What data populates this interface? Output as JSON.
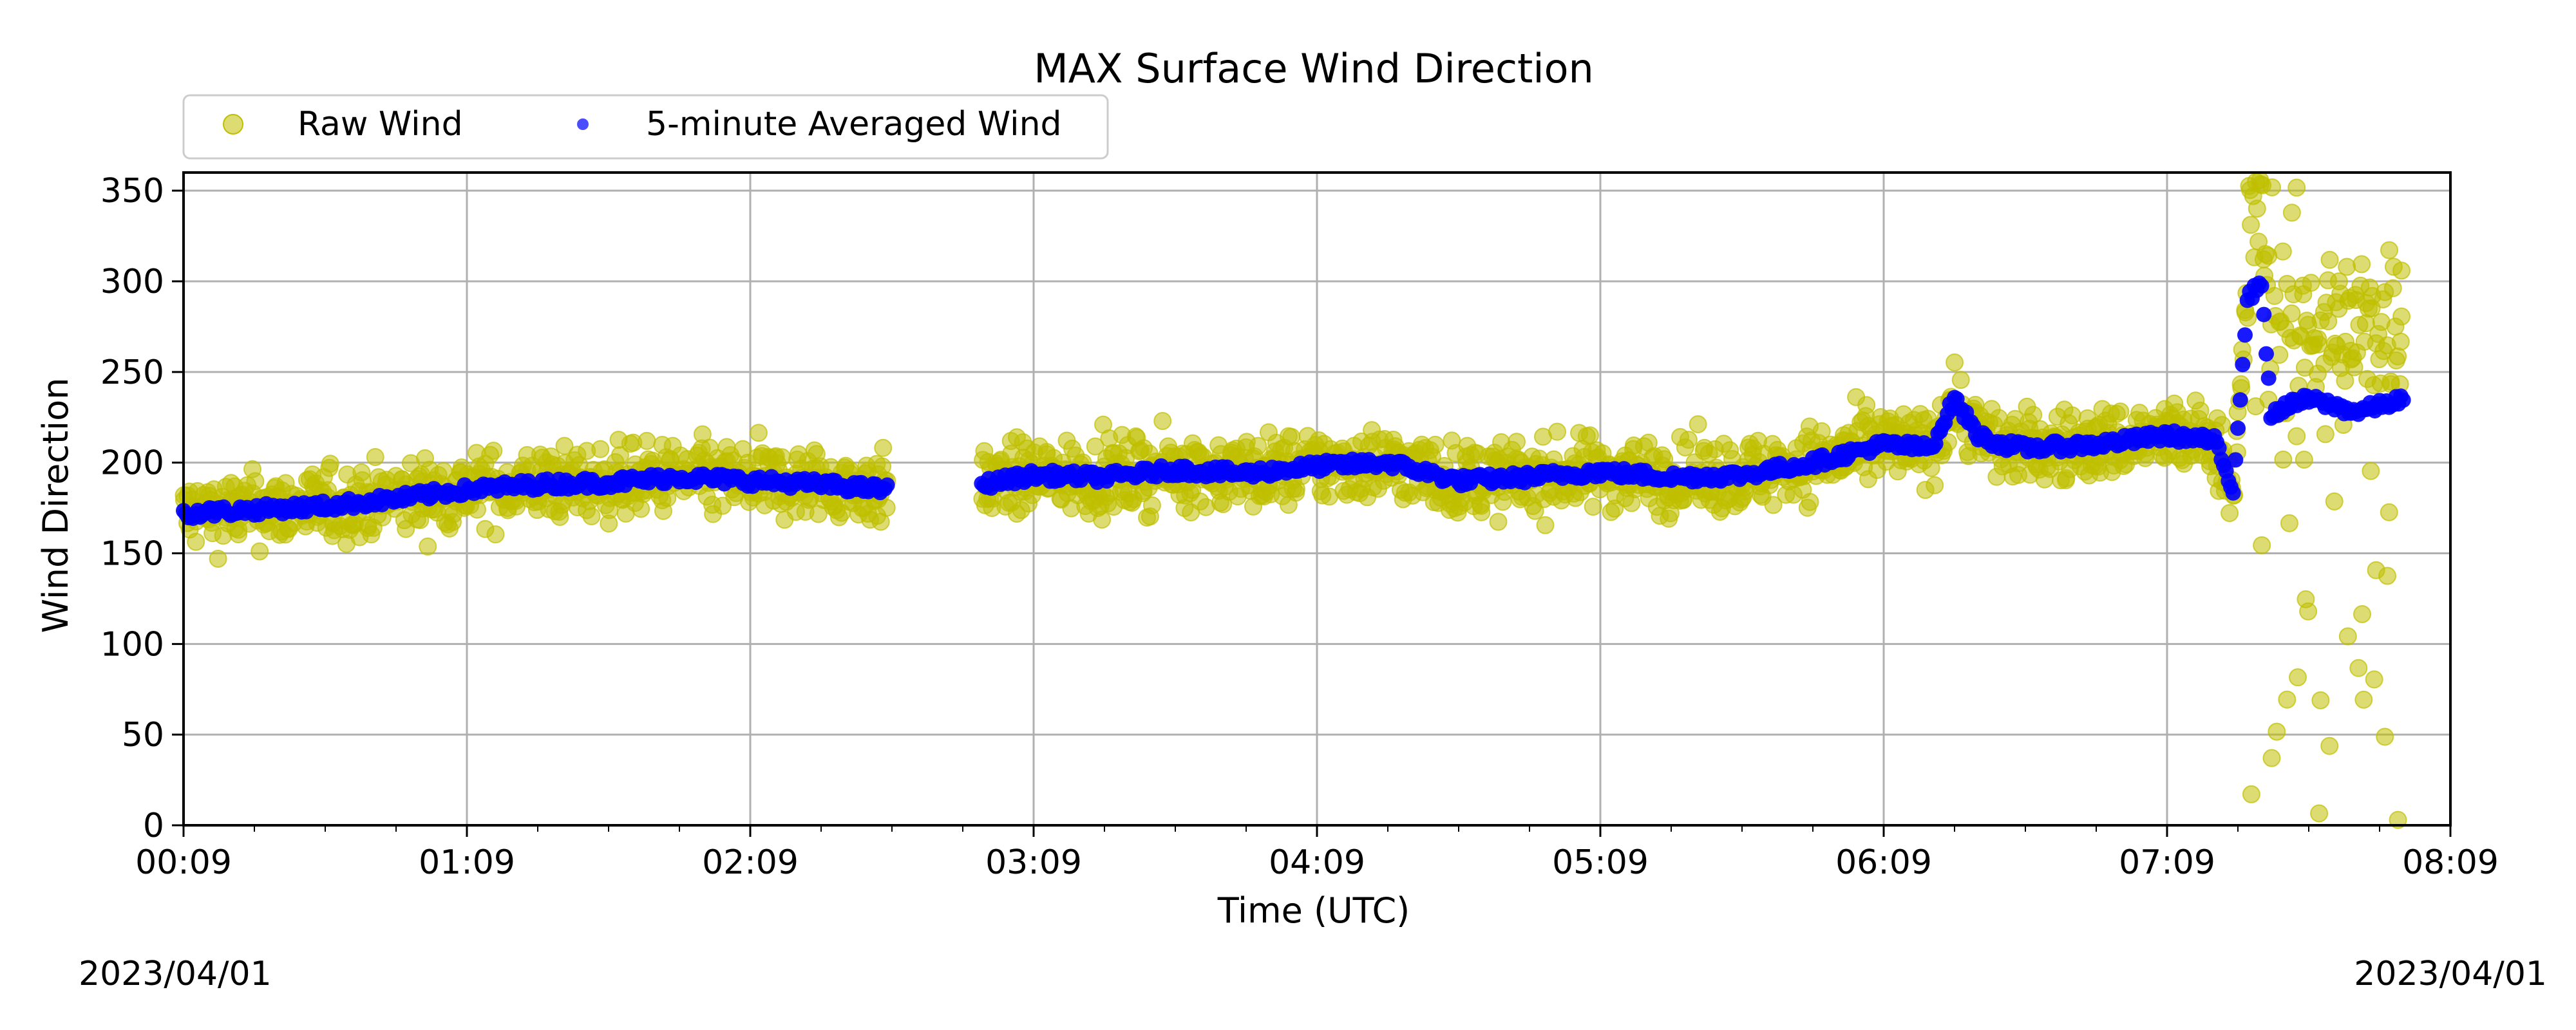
{
  "chart_data": {
    "type": "scatter",
    "title": "MAX Surface Wind Direction",
    "xlabel": "Time (UTC)",
    "ylabel": "Wind Direction",
    "x_range": [
      "00:09",
      "08:09"
    ],
    "xlim_minutes_from_0009": [
      0,
      480
    ],
    "ylim": [
      0,
      360
    ],
    "x_ticks": [
      "00:09",
      "01:09",
      "02:09",
      "03:09",
      "04:09",
      "05:09",
      "06:09",
      "07:09",
      "08:09"
    ],
    "y_ticks": [
      0,
      50,
      100,
      150,
      200,
      250,
      300,
      350
    ],
    "grid": true,
    "legend_position": "top-left, above plot",
    "series": [
      {
        "name": "Raw Wind",
        "color": "#bfbf00",
        "description": "raw scatter, mean follows the averaged wind with roughly ±30 spread; very noisy 0–360 after 07:26",
        "segments": [
          [
            "00:09",
            "02:38"
          ],
          [
            "02:58",
            "07:59"
          ]
        ]
      },
      {
        "name": "5-minute Averaged Wind",
        "color": "#0000ff",
        "segments": [
          [
            "00:09",
            "02:38"
          ],
          [
            "02:58",
            "07:59"
          ]
        ],
        "x": [
          "00:09",
          "00:24",
          "00:39",
          "00:54",
          "01:09",
          "01:24",
          "01:39",
          "01:54",
          "02:09",
          "02:24",
          "02:38",
          "02:58",
          "03:09",
          "03:24",
          "03:39",
          "03:54",
          "04:09",
          "04:24",
          "04:39",
          "04:54",
          "05:09",
          "05:24",
          "05:39",
          "05:54",
          "06:09",
          "06:19",
          "06:24",
          "06:29",
          "06:34",
          "06:39",
          "06:54",
          "07:09",
          "07:19",
          "07:23",
          "07:26",
          "07:29",
          "07:31",
          "07:33",
          "07:39",
          "07:49",
          "07:59"
        ],
        "y": [
          172,
          174,
          176,
          180,
          185,
          188,
          189,
          192,
          190,
          188,
          185,
          188,
          193,
          192,
          196,
          194,
          198,
          200,
          190,
          192,
          195,
          192,
          193,
          200,
          210,
          208,
          235,
          215,
          210,
          208,
          210,
          215,
          212,
          185,
          290,
          300,
          225,
          230,
          235,
          228,
          235
        ]
      }
    ],
    "annotations": {
      "date_left": "2023/04/01",
      "date_right": "2023/04/01"
    }
  },
  "legend": {
    "raw_label": "Raw Wind",
    "avg_label": "5-minute Averaged Wind",
    "raw_color": "#bfbf00",
    "avg_color": "#0000ff"
  }
}
